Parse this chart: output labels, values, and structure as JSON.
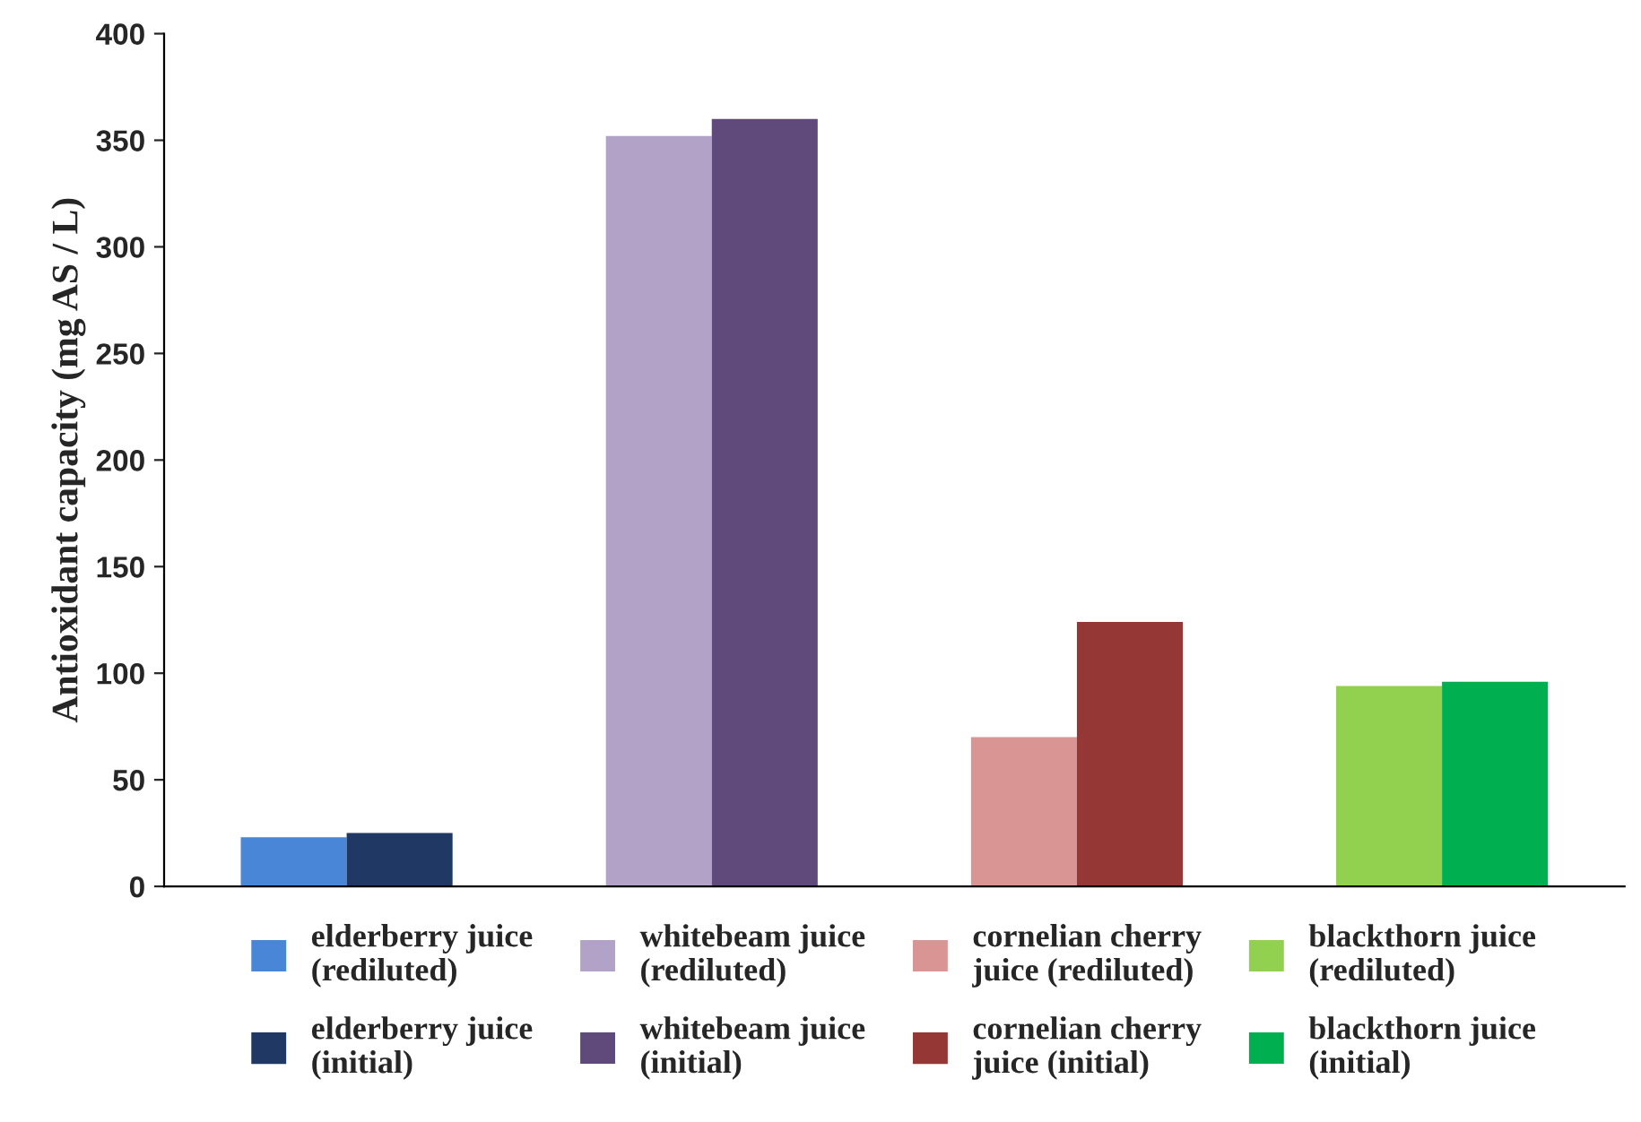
{
  "chart_data": {
    "type": "bar",
    "ylabel": "Antioxidant capacity (mg AS / L)",
    "categories": [
      null,
      null,
      null,
      null
    ],
    "series": [
      {
        "name": "elderberry juice\n(rediluted)",
        "color": "#4a86d8",
        "values": [
          23,
          null,
          null,
          null
        ]
      },
      {
        "name": "elderberry juice\n(initial)",
        "color": "#1f3864",
        "values": [
          25,
          null,
          null,
          null
        ]
      },
      {
        "name": "whitebeam juice\n(rediluted)",
        "color": "#b3a2c7",
        "values": [
          null,
          352,
          null,
          null
        ]
      },
      {
        "name": "whitebeam juice\n(initial)",
        "color": "#604a7b",
        "values": [
          null,
          360,
          null,
          null
        ]
      },
      {
        "name": "cornelian cherry\njuice (rediluted)",
        "color": "#d99594",
        "values": [
          null,
          null,
          70,
          null
        ]
      },
      {
        "name": "cornelian cherry\njuice (initial)",
        "color": "#953735",
        "values": [
          null,
          null,
          124,
          null
        ]
      },
      {
        "name": "blackthorn juice\n(rediluted)",
        "color": "#92d050",
        "values": [
          null,
          null,
          null,
          94
        ]
      },
      {
        "name": "blackthorn juice\n(initial)",
        "color": "#00b050",
        "values": [
          null,
          null,
          null,
          96
        ]
      }
    ],
    "ylim": [
      0,
      400
    ],
    "yticks": [
      0,
      50,
      100,
      150,
      200,
      250,
      300,
      350,
      400
    ],
    "grid": false,
    "legend": "bottom"
  }
}
